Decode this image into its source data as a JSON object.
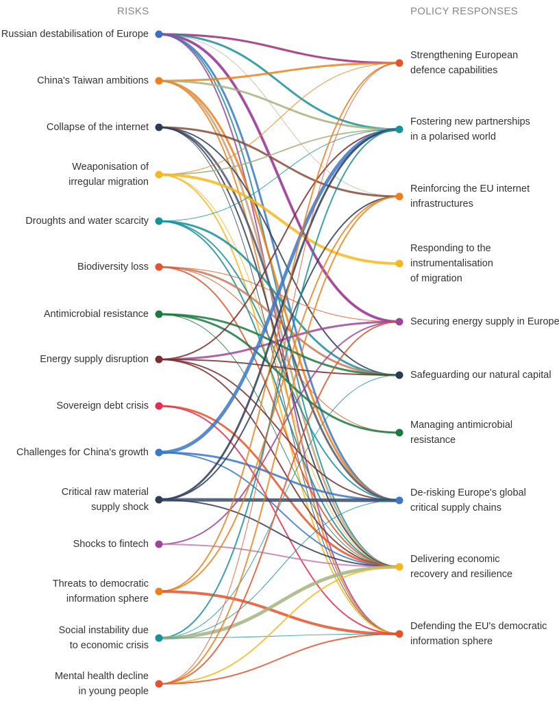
{
  "headers": {
    "risks": "RISKS",
    "policies": "POLICY RESPONSES"
  },
  "risks": [
    {
      "id": "r1",
      "lines": [
        "Russian destabilisation of Europe"
      ],
      "color": "#3b6fc4"
    },
    {
      "id": "r2",
      "lines": [
        "China's Taiwan ambitions"
      ],
      "color": "#ef7f1a"
    },
    {
      "id": "r3",
      "lines": [
        "Collapse of the internet"
      ],
      "color": "#2e3b55"
    },
    {
      "id": "r4",
      "lines": [
        "Weaponisation of",
        "irregular migration"
      ],
      "color": "#f7b81f"
    },
    {
      "id": "r5",
      "lines": [
        "Droughts and water scarcity"
      ],
      "color": "#17919b"
    },
    {
      "id": "r6",
      "lines": [
        "Biodiversity loss"
      ],
      "color": "#e5532c"
    },
    {
      "id": "r7",
      "lines": [
        "Antimicrobial resistance"
      ],
      "color": "#1b7a3e"
    },
    {
      "id": "r8",
      "lines": [
        "Energy supply disruption"
      ],
      "color": "#7a2e2e"
    },
    {
      "id": "r9",
      "lines": [
        "Sovereign debt crisis"
      ],
      "color": "#e52b52"
    },
    {
      "id": "r10",
      "lines": [
        "Challenges for China's growth"
      ],
      "color": "#3b78c6"
    },
    {
      "id": "r11",
      "lines": [
        "Critical raw material",
        "supply shock"
      ],
      "color": "#2f3d58"
    },
    {
      "id": "r12",
      "lines": [
        "Shocks to fintech"
      ],
      "color": "#a0449a"
    },
    {
      "id": "r13",
      "lines": [
        "Threats to democratic",
        "information sphere"
      ],
      "color": "#ef7f1a"
    },
    {
      "id": "r14",
      "lines": [
        "Social instability due",
        "to economic crisis"
      ],
      "color": "#17919b"
    },
    {
      "id": "r15",
      "lines": [
        "Mental health decline",
        "in young people"
      ],
      "color": "#e5532c"
    }
  ],
  "policies": [
    {
      "id": "p1",
      "lines": [
        "Strengthening European",
        "defence capabilities"
      ],
      "color": "#e5532c"
    },
    {
      "id": "p2",
      "lines": [
        "Fostering new partnerships",
        "in a polarised world"
      ],
      "color": "#17919b"
    },
    {
      "id": "p3",
      "lines": [
        "Reinforcing the EU internet",
        "infrastructures"
      ],
      "color": "#ef7f1a"
    },
    {
      "id": "p4",
      "lines": [
        "Responding to the",
        "instrumentalisation",
        "of migration"
      ],
      "color": "#f7b81f"
    },
    {
      "id": "p5",
      "lines": [
        "Securing energy supply in Europe"
      ],
      "color": "#a0449a"
    },
    {
      "id": "p6",
      "lines": [
        "Safeguarding our natural capital"
      ],
      "color": "#2e3b55"
    },
    {
      "id": "p7",
      "lines": [
        "Managing antimicrobial",
        "resistance"
      ],
      "color": "#1b7a3e"
    },
    {
      "id": "p8",
      "lines": [
        "De-risking Europe's global",
        "critical supply chains"
      ],
      "color": "#3b78c6"
    },
    {
      "id": "p9",
      "lines": [
        "Delivering economic",
        "recovery and resilience"
      ],
      "color": "#f7b81f"
    },
    {
      "id": "p10",
      "lines": [
        "Defending the EU's democratic",
        "information sphere"
      ],
      "color": "#e5532c"
    }
  ],
  "links": [
    {
      "from": 0,
      "to": 0,
      "weight": 3,
      "color": "#e5532c"
    },
    {
      "from": 0,
      "to": 0,
      "weight": 3,
      "color": "#a0449a"
    },
    {
      "from": 0,
      "to": 1,
      "weight": 3,
      "color": "#17919b"
    },
    {
      "from": 0,
      "to": 2,
      "weight": 1,
      "color": "#c9b8a0"
    },
    {
      "from": 0,
      "to": 4,
      "weight": 4,
      "color": "#a0449a"
    },
    {
      "from": 0,
      "to": 4,
      "weight": 2,
      "color": "#a0449a"
    },
    {
      "from": 0,
      "to": 7,
      "weight": 3,
      "color": "#3b78c6"
    },
    {
      "from": 0,
      "to": 8,
      "weight": 2,
      "color": "#17919b"
    },
    {
      "from": 0,
      "to": 9,
      "weight": 2,
      "color": "#a0449a"
    },
    {
      "from": 1,
      "to": 0,
      "weight": 3,
      "color": "#ef7f1a"
    },
    {
      "from": 1,
      "to": 1,
      "weight": 3,
      "color": "#a6b480"
    },
    {
      "from": 1,
      "to": 7,
      "weight": 3,
      "color": "#ef7f1a"
    },
    {
      "from": 1,
      "to": 8,
      "weight": 3,
      "color": "#c9a47a"
    },
    {
      "from": 1,
      "to": 9,
      "weight": 2,
      "color": "#ef7f1a"
    },
    {
      "from": 2,
      "to": 2,
      "weight": 3,
      "color": "#8a4a3a"
    },
    {
      "from": 2,
      "to": 5,
      "weight": 2,
      "color": "#2e3b55"
    },
    {
      "from": 2,
      "to": 7,
      "weight": 3,
      "color": "#4a5670"
    },
    {
      "from": 2,
      "to": 8,
      "weight": 2,
      "color": "#2e3b55"
    },
    {
      "from": 2,
      "to": 9,
      "weight": 1,
      "color": "#2e3b55"
    },
    {
      "from": 3,
      "to": 0,
      "weight": 1,
      "color": "#ef7f1a"
    },
    {
      "from": 3,
      "to": 1,
      "weight": 2,
      "color": "#a6b480"
    },
    {
      "from": 3,
      "to": 3,
      "weight": 4,
      "color": "#f7b81f"
    },
    {
      "from": 3,
      "to": 8,
      "weight": 1,
      "color": "#f7b81f"
    },
    {
      "from": 3,
      "to": 9,
      "weight": 2,
      "color": "#f7b81f"
    },
    {
      "from": 4,
      "to": 1,
      "weight": 1,
      "color": "#17919b"
    },
    {
      "from": 4,
      "to": 5,
      "weight": 3,
      "color": "#17919b"
    },
    {
      "from": 4,
      "to": 7,
      "weight": 2,
      "color": "#17919b"
    },
    {
      "from": 4,
      "to": 8,
      "weight": 2,
      "color": "#17919b"
    },
    {
      "from": 5,
      "to": 4,
      "weight": 1,
      "color": "#e5532c"
    },
    {
      "from": 5,
      "to": 5,
      "weight": 3,
      "color": "#c97a5a"
    },
    {
      "from": 5,
      "to": 6,
      "weight": 1,
      "color": "#e5532c"
    },
    {
      "from": 5,
      "to": 8,
      "weight": 2,
      "color": "#e5532c"
    },
    {
      "from": 6,
      "to": 5,
      "weight": 3,
      "color": "#1b7a3e"
    },
    {
      "from": 6,
      "to": 6,
      "weight": 3,
      "color": "#1b7a3e"
    },
    {
      "from": 6,
      "to": 8,
      "weight": 1,
      "color": "#1b7a3e"
    },
    {
      "from": 7,
      "to": 1,
      "weight": 2,
      "color": "#7a2e2e"
    },
    {
      "from": 7,
      "to": 4,
      "weight": 3,
      "color": "#a0449a"
    },
    {
      "from": 7,
      "to": 5,
      "weight": 2,
      "color": "#7a2e2e"
    },
    {
      "from": 7,
      "to": 7,
      "weight": 2,
      "color": "#7a2e2e"
    },
    {
      "from": 7,
      "to": 8,
      "weight": 2,
      "color": "#7a2e2e"
    },
    {
      "from": 8,
      "to": 8,
      "weight": 3,
      "color": "#e5532c"
    },
    {
      "from": 8,
      "to": 9,
      "weight": 2,
      "color": "#e52b52"
    },
    {
      "from": 9,
      "to": 1,
      "weight": 5,
      "color": "#3b78c6"
    },
    {
      "from": 9,
      "to": 7,
      "weight": 3,
      "color": "#3b78c6"
    },
    {
      "from": 9,
      "to": 8,
      "weight": 2,
      "color": "#3b78c6"
    },
    {
      "from": 10,
      "to": 1,
      "weight": 3,
      "color": "#2f3d58"
    },
    {
      "from": 10,
      "to": 2,
      "weight": 2,
      "color": "#2f3d58"
    },
    {
      "from": 10,
      "to": 7,
      "weight": 5,
      "color": "#3b4a68"
    },
    {
      "from": 10,
      "to": 8,
      "weight": 2,
      "color": "#2f3d58"
    },
    {
      "from": 11,
      "to": 4,
      "weight": 2,
      "color": "#a0449a"
    },
    {
      "from": 11,
      "to": 8,
      "weight": 2,
      "color": "#c97aa8"
    },
    {
      "from": 12,
      "to": 0,
      "weight": 2,
      "color": "#ef7f1a"
    },
    {
      "from": 12,
      "to": 2,
      "weight": 2,
      "color": "#ef7f1a"
    },
    {
      "from": 12,
      "to": 9,
      "weight": 4,
      "color": "#e5532c"
    },
    {
      "from": 13,
      "to": 1,
      "weight": 2,
      "color": "#17919b"
    },
    {
      "from": 13,
      "to": 5,
      "weight": 1,
      "color": "#17919b"
    },
    {
      "from": 13,
      "to": 7,
      "weight": 1,
      "color": "#17919b"
    },
    {
      "from": 13,
      "to": 8,
      "weight": 5,
      "color": "#a6b480"
    },
    {
      "from": 13,
      "to": 9,
      "weight": 1,
      "color": "#17919b"
    },
    {
      "from": 14,
      "to": 0,
      "weight": 1,
      "color": "#e5532c"
    },
    {
      "from": 14,
      "to": 2,
      "weight": 2,
      "color": "#ef7f1a"
    },
    {
      "from": 14,
      "to": 4,
      "weight": 2,
      "color": "#e5532c"
    },
    {
      "from": 14,
      "to": 8,
      "weight": 2,
      "color": "#f7b81f"
    },
    {
      "from": 14,
      "to": 9,
      "weight": 2,
      "color": "#e5532c"
    }
  ]
}
